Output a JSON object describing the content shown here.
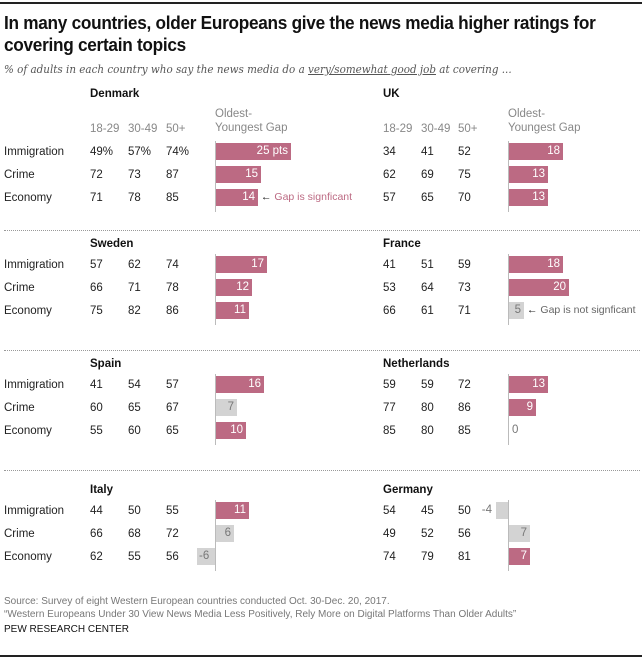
{
  "title": "In many countries, older Europeans give the news media higher ratings for covering certain topics",
  "subtitle_pre": "% of adults in each country who say the news media do a ",
  "subtitle_emph": "very/somewhat good job",
  "subtitle_post": " at covering ...",
  "colors": {
    "significant": "#bc6a83",
    "not_significant": "#d3d3d3",
    "sig_text": "#ffffff",
    "nonsig_text": "#777777",
    "axis": "#bbbbbb"
  },
  "chart_data": {
    "type": "table",
    "title": "In many countries, older Europeans give the news media higher ratings for covering certain topics",
    "column_headers": [
      "18-29",
      "30-49",
      "50+"
    ],
    "gap_header_line1": "Oldest-",
    "gap_header_line2": "Youngest Gap",
    "row_labels": [
      "Immigration",
      "Crime",
      "Economy"
    ],
    "panels": [
      {
        "country": "Denmark",
        "rows": [
          {
            "topic": "Immigration",
            "values": [
              "49%",
              "57%",
              "74%"
            ],
            "gap": 25,
            "gap_label": "25 pts",
            "significant": true
          },
          {
            "topic": "Crime",
            "values": [
              "72",
              "73",
              "87"
            ],
            "gap": 15,
            "gap_label": "15",
            "significant": true
          },
          {
            "topic": "Economy",
            "values": [
              "71",
              "78",
              "85"
            ],
            "gap": 14,
            "gap_label": "14",
            "significant": true,
            "note": "Gap is signficant"
          }
        ]
      },
      {
        "country": "UK",
        "rows": [
          {
            "topic": "Immigration",
            "values": [
              "34",
              "41",
              "52"
            ],
            "gap": 18,
            "gap_label": "18",
            "significant": true
          },
          {
            "topic": "Crime",
            "values": [
              "62",
              "69",
              "75"
            ],
            "gap": 13,
            "gap_label": "13",
            "significant": true
          },
          {
            "topic": "Economy",
            "values": [
              "57",
              "65",
              "70"
            ],
            "gap": 13,
            "gap_label": "13",
            "significant": true
          }
        ]
      },
      {
        "country": "Sweden",
        "rows": [
          {
            "topic": "Immigration",
            "values": [
              "57",
              "62",
              "74"
            ],
            "gap": 17,
            "gap_label": "17",
            "significant": true
          },
          {
            "topic": "Crime",
            "values": [
              "66",
              "71",
              "78"
            ],
            "gap": 12,
            "gap_label": "12",
            "significant": true
          },
          {
            "topic": "Economy",
            "values": [
              "75",
              "82",
              "86"
            ],
            "gap": 11,
            "gap_label": "11",
            "significant": true
          }
        ]
      },
      {
        "country": "France",
        "rows": [
          {
            "topic": "Immigration",
            "values": [
              "41",
              "51",
              "59"
            ],
            "gap": 18,
            "gap_label": "18",
            "significant": true
          },
          {
            "topic": "Crime",
            "values": [
              "53",
              "64",
              "73"
            ],
            "gap": 20,
            "gap_label": "20",
            "significant": true
          },
          {
            "topic": "Economy",
            "values": [
              "66",
              "61",
              "71"
            ],
            "gap": 5,
            "gap_label": "5",
            "significant": false,
            "note": "Gap is not signficant"
          }
        ]
      },
      {
        "country": "Spain",
        "rows": [
          {
            "topic": "Immigration",
            "values": [
              "41",
              "54",
              "57"
            ],
            "gap": 16,
            "gap_label": "16",
            "significant": true
          },
          {
            "topic": "Crime",
            "values": [
              "60",
              "65",
              "67"
            ],
            "gap": 7,
            "gap_label": "7",
            "significant": false
          },
          {
            "topic": "Economy",
            "values": [
              "55",
              "60",
              "65"
            ],
            "gap": 10,
            "gap_label": "10",
            "significant": true
          }
        ]
      },
      {
        "country": "Netherlands",
        "rows": [
          {
            "topic": "Immigration",
            "values": [
              "59",
              "59",
              "72"
            ],
            "gap": 13,
            "gap_label": "13",
            "significant": true
          },
          {
            "topic": "Crime",
            "values": [
              "77",
              "80",
              "86"
            ],
            "gap": 9,
            "gap_label": "9",
            "significant": true
          },
          {
            "topic": "Economy",
            "values": [
              "85",
              "80",
              "85"
            ],
            "gap": 0,
            "gap_label": "0",
            "significant": false
          }
        ]
      },
      {
        "country": "Italy",
        "rows": [
          {
            "topic": "Immigration",
            "values": [
              "44",
              "50",
              "55"
            ],
            "gap": 11,
            "gap_label": "11",
            "significant": true
          },
          {
            "topic": "Crime",
            "values": [
              "66",
              "68",
              "72"
            ],
            "gap": 6,
            "gap_label": "6",
            "significant": false
          },
          {
            "topic": "Economy",
            "values": [
              "62",
              "55",
              "56"
            ],
            "gap": -6,
            "gap_label": "-6",
            "significant": false
          }
        ]
      },
      {
        "country": "Germany",
        "rows": [
          {
            "topic": "Immigration",
            "values": [
              "54",
              "45",
              "50"
            ],
            "gap": -4,
            "gap_label": "-4",
            "significant": false
          },
          {
            "topic": "Crime",
            "values": [
              "49",
              "52",
              "56"
            ],
            "gap": 7,
            "gap_label": "7",
            "significant": false
          },
          {
            "topic": "Economy",
            "values": [
              "74",
              "79",
              "81"
            ],
            "gap": 7,
            "gap_label": "7",
            "significant": true
          }
        ]
      }
    ]
  },
  "footer": {
    "source": "Source: Survey of eight Western European countries conducted Oct. 30-Dec. 20, 2017.",
    "report": "“Western Europeans Under 30 View News Media Less Positively, Rely More on Digital Platforms Than Older Adults”",
    "brand": "PEW RESEARCH CENTER"
  }
}
